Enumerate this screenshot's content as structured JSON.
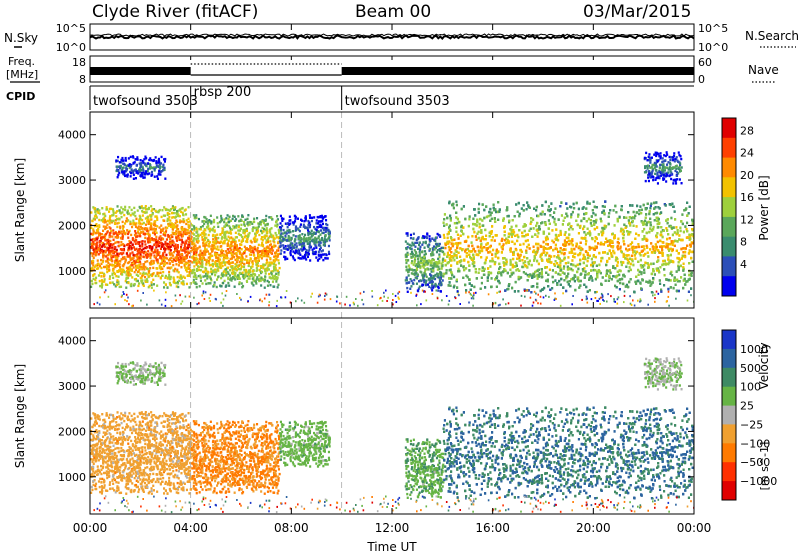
{
  "header": {
    "station": "Clyde River (fitACF)",
    "beam": "Beam 00",
    "date": "03/Mar/2015"
  },
  "noise_panel": {
    "left_label": "N.Sky",
    "right_label": "N.Search",
    "ticks_left": [
      "10^5",
      "10^0"
    ],
    "ticks_right": [
      "10^5",
      "10^0"
    ]
  },
  "freq_panel": {
    "left_label_1": "Freq.",
    "left_label_2": "[MHz]",
    "ticks_left": [
      "18",
      "8"
    ],
    "right_label": "Nave",
    "ticks_right": [
      "60",
      "0"
    ]
  },
  "cpid": {
    "label": "CPID",
    "segments": [
      {
        "name": "twofsound 3503",
        "start": 0,
        "end": 4
      },
      {
        "name": "rbsp 200",
        "start": 4,
        "end": 10
      },
      {
        "name": "twofsound 3503",
        "start": 10,
        "end": 24
      }
    ]
  },
  "power_scale": {
    "title": "Power [dB]",
    "ticks": [
      "28",
      "24",
      "20",
      "16",
      "12",
      "8",
      "4"
    ],
    "colors": [
      "#0000ee",
      "#2c4fb8",
      "#3a8c6e",
      "#5aa75a",
      "#9ed03c",
      "#f2c200",
      "#ff8a00",
      "#ff4000",
      "#e00000"
    ]
  },
  "velocity_scale": {
    "title": "Velocity",
    "unit": "[m s^-1]",
    "ticks": [
      "1000",
      "500",
      "100",
      "25",
      "−25",
      "−100",
      "−500",
      "−1000"
    ],
    "colors": [
      "#1a36c8",
      "#2c64a0",
      "#3e8a64",
      "#66b445",
      "#b0b0b0",
      "#f0a030",
      "#ff7a00",
      "#ff3000",
      "#e00000"
    ]
  },
  "chart_data": {
    "type": "heatmap",
    "panels": [
      "Power",
      "Velocity"
    ],
    "xlabel": "Time UT",
    "x_ticks": [
      "00:00",
      "04:00",
      "08:00",
      "12:00",
      "16:00",
      "20:00",
      "00:00"
    ],
    "xlim_hours": [
      0,
      24
    ],
    "ylabel": "Slant Range [km]",
    "y_ticks": [
      1000,
      2000,
      3000,
      4000
    ],
    "ylim_km": [
      180,
      4500
    ],
    "scatter_regions": [
      {
        "t_start": 0.0,
        "t_end": 4.0,
        "r_start": 600,
        "r_end": 2400,
        "power_db": 26,
        "velocity": -60
      },
      {
        "t_start": 4.0,
        "t_end": 7.5,
        "r_start": 600,
        "r_end": 2200,
        "power_db": 22,
        "velocity": -120
      },
      {
        "t_start": 7.5,
        "t_end": 9.5,
        "r_start": 1200,
        "r_end": 2200,
        "power_db": 10,
        "velocity": 60
      },
      {
        "t_start": 1.0,
        "t_end": 3.0,
        "r_start": 3000,
        "r_end": 3500,
        "power_db": 8,
        "velocity": 30
      },
      {
        "t_start": 12.5,
        "t_end": 14.0,
        "r_start": 500,
        "r_end": 1800,
        "power_db": 14,
        "velocity": 80
      },
      {
        "t_start": 14.0,
        "t_end": 24.0,
        "r_start": 500,
        "r_end": 2500,
        "power_db": 20,
        "velocity": 520
      },
      {
        "t_start": 22.0,
        "t_end": 23.5,
        "r_start": 2900,
        "r_end": 3600,
        "power_db": 10,
        "velocity": 20
      }
    ]
  }
}
